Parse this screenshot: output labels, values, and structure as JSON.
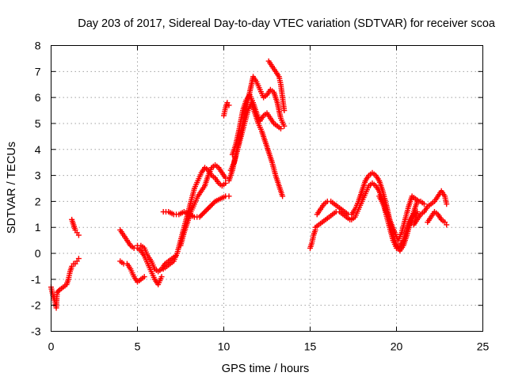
{
  "chart_data": {
    "type": "scatter",
    "title": "Day 203 of 2017, Sidereal Day-to-day VTEC variation (SDTVAR) for receiver scoa",
    "xlabel": "GPS time / hours",
    "ylabel": "SDTVAR / TECUs",
    "xlim": [
      0,
      25
    ],
    "ylim": [
      -3,
      8
    ],
    "xticks": [
      "0",
      "5",
      "10",
      "15",
      "20",
      "25"
    ],
    "yticks": [
      "-3",
      "-2",
      "-1",
      "0",
      "1",
      "2",
      "3",
      "4",
      "5",
      "6",
      "7",
      "8"
    ],
    "grid": true,
    "marker": "+",
    "color": "#ff0000",
    "series": [
      {
        "points": [
          [
            0.0,
            -1.3
          ],
          [
            0.1,
            -1.6
          ],
          [
            0.2,
            -1.8
          ],
          [
            0.3,
            -2.1
          ],
          [
            0.35,
            -1.5
          ],
          [
            0.5,
            -1.4
          ],
          [
            0.7,
            -1.3
          ],
          [
            0.9,
            -1.2
          ],
          [
            1.0,
            -1.0
          ],
          [
            1.1,
            -0.7
          ],
          [
            1.2,
            -0.5
          ],
          [
            1.3,
            -0.4
          ],
          [
            1.4,
            -0.4
          ],
          [
            1.5,
            -0.3
          ],
          [
            1.6,
            -0.2
          ],
          [
            1.2,
            1.3
          ],
          [
            1.3,
            1.1
          ],
          [
            1.4,
            0.9
          ],
          [
            1.5,
            0.8
          ],
          [
            1.6,
            0.7
          ],
          [
            4.0,
            -0.3
          ],
          [
            4.2,
            -0.4
          ],
          [
            4.4,
            -0.4
          ],
          [
            4.6,
            -0.6
          ],
          [
            4.8,
            -0.9
          ],
          [
            5.0,
            -1.1
          ],
          [
            5.2,
            -1.0
          ],
          [
            5.4,
            -0.9
          ],
          [
            4.0,
            0.9
          ],
          [
            4.2,
            0.7
          ],
          [
            4.4,
            0.5
          ],
          [
            4.6,
            0.3
          ],
          [
            4.8,
            0.2
          ],
          [
            5.0,
            0.2
          ],
          [
            5.2,
            0.1
          ],
          [
            5.4,
            -0.1
          ],
          [
            5.6,
            -0.4
          ],
          [
            5.8,
            -0.7
          ],
          [
            6.0,
            -1.0
          ],
          [
            6.2,
            -1.2
          ],
          [
            6.4,
            -0.9
          ],
          [
            5.0,
            0.3
          ],
          [
            5.2,
            0.3
          ],
          [
            5.4,
            0.2
          ],
          [
            5.6,
            -0.1
          ],
          [
            5.8,
            -0.3
          ],
          [
            6.0,
            -0.6
          ],
          [
            6.2,
            -0.7
          ],
          [
            6.4,
            -0.6
          ],
          [
            6.6,
            -0.4
          ],
          [
            6.8,
            -0.3
          ],
          [
            7.0,
            -0.2
          ],
          [
            7.2,
            -0.1
          ],
          [
            6.5,
            -0.6
          ],
          [
            6.7,
            -0.5
          ],
          [
            6.9,
            -0.4
          ],
          [
            7.1,
            -0.3
          ],
          [
            7.3,
            0.0
          ],
          [
            7.5,
            0.5
          ],
          [
            7.7,
            1.0
          ],
          [
            7.9,
            1.5
          ],
          [
            8.1,
            2.0
          ],
          [
            8.3,
            2.5
          ],
          [
            8.5,
            2.8
          ],
          [
            8.7,
            3.1
          ],
          [
            8.9,
            3.3
          ],
          [
            9.1,
            3.2
          ],
          [
            9.3,
            3.0
          ],
          [
            9.5,
            2.9
          ],
          [
            9.7,
            2.7
          ],
          [
            9.9,
            2.6
          ],
          [
            10.1,
            2.7
          ],
          [
            7.5,
            0.3
          ],
          [
            7.7,
            0.8
          ],
          [
            7.9,
            1.2
          ],
          [
            8.1,
            1.6
          ],
          [
            8.3,
            1.9
          ],
          [
            8.5,
            2.2
          ],
          [
            8.7,
            2.4
          ],
          [
            8.9,
            2.6
          ],
          [
            9.1,
            3.0
          ],
          [
            9.3,
            3.3
          ],
          [
            9.5,
            3.4
          ],
          [
            9.7,
            3.3
          ],
          [
            9.9,
            3.1
          ],
          [
            10.1,
            2.9
          ],
          [
            6.5,
            1.6
          ],
          [
            6.8,
            1.6
          ],
          [
            7.1,
            1.5
          ],
          [
            7.4,
            1.5
          ],
          [
            7.7,
            1.6
          ],
          [
            8.0,
            1.5
          ],
          [
            8.3,
            1.4
          ],
          [
            8.6,
            1.4
          ],
          [
            8.9,
            1.6
          ],
          [
            9.2,
            1.8
          ],
          [
            9.5,
            2.0
          ],
          [
            9.8,
            2.1
          ],
          [
            10.1,
            2.2
          ],
          [
            10.3,
            2.2
          ],
          [
            10.0,
            5.3
          ],
          [
            10.1,
            5.6
          ],
          [
            10.2,
            5.8
          ],
          [
            10.3,
            5.7
          ],
          [
            10.3,
            2.8
          ],
          [
            10.5,
            3.2
          ],
          [
            10.7,
            3.8
          ],
          [
            10.9,
            4.4
          ],
          [
            11.1,
            5.0
          ],
          [
            11.3,
            5.6
          ],
          [
            11.5,
            6.2
          ],
          [
            11.7,
            6.8
          ],
          [
            11.9,
            6.6
          ],
          [
            12.1,
            6.3
          ],
          [
            12.3,
            6.0
          ],
          [
            12.5,
            6.1
          ],
          [
            12.7,
            6.3
          ],
          [
            12.9,
            6.2
          ],
          [
            13.1,
            5.8
          ],
          [
            13.3,
            5.2
          ],
          [
            13.5,
            4.9
          ],
          [
            10.5,
            3.8
          ],
          [
            10.7,
            4.2
          ],
          [
            10.9,
            4.8
          ],
          [
            11.1,
            5.5
          ],
          [
            11.3,
            5.9
          ],
          [
            11.5,
            6.1
          ],
          [
            11.7,
            5.8
          ],
          [
            11.9,
            5.4
          ],
          [
            12.1,
            5.1
          ],
          [
            12.3,
            5.3
          ],
          [
            12.5,
            5.4
          ],
          [
            12.7,
            5.2
          ],
          [
            12.9,
            5.0
          ],
          [
            13.1,
            4.9
          ],
          [
            13.3,
            4.8
          ],
          [
            10.4,
            3.2
          ],
          [
            10.6,
            3.5
          ],
          [
            10.8,
            4.0
          ],
          [
            11.0,
            4.5
          ],
          [
            11.2,
            5.0
          ],
          [
            11.4,
            5.5
          ],
          [
            11.6,
            5.8
          ],
          [
            11.8,
            5.4
          ],
          [
            12.0,
            5.0
          ],
          [
            12.2,
            4.7
          ],
          [
            12.4,
            4.3
          ],
          [
            12.6,
            3.9
          ],
          [
            12.8,
            3.5
          ],
          [
            13.0,
            3.0
          ],
          [
            13.2,
            2.6
          ],
          [
            13.4,
            2.2
          ],
          [
            12.6,
            7.4
          ],
          [
            12.8,
            7.2
          ],
          [
            13.0,
            7.0
          ],
          [
            13.2,
            6.8
          ],
          [
            13.3,
            6.5
          ],
          [
            13.4,
            6.0
          ],
          [
            13.5,
            5.5
          ],
          [
            15.0,
            0.2
          ],
          [
            15.1,
            0.4
          ],
          [
            15.2,
            0.7
          ],
          [
            15.3,
            0.9
          ],
          [
            15.3,
            1.0
          ],
          [
            15.5,
            1.1
          ],
          [
            15.7,
            1.2
          ],
          [
            15.9,
            1.3
          ],
          [
            16.1,
            1.4
          ],
          [
            16.3,
            1.5
          ],
          [
            16.5,
            1.6
          ],
          [
            16.7,
            1.6
          ],
          [
            16.9,
            1.5
          ],
          [
            17.1,
            1.4
          ],
          [
            17.3,
            1.3
          ],
          [
            15.4,
            1.5
          ],
          [
            15.6,
            1.7
          ],
          [
            15.8,
            1.9
          ],
          [
            16.0,
            2.0
          ],
          [
            16.2,
            2.0
          ],
          [
            16.4,
            1.9
          ],
          [
            16.6,
            1.8
          ],
          [
            16.8,
            1.7
          ],
          [
            17.0,
            1.6
          ],
          [
            17.2,
            1.5
          ],
          [
            17.4,
            1.5
          ],
          [
            17.6,
            1.7
          ],
          [
            17.8,
            2.0
          ],
          [
            18.0,
            2.4
          ],
          [
            18.2,
            2.8
          ],
          [
            18.4,
            3.0
          ],
          [
            18.6,
            3.1
          ],
          [
            18.8,
            3.0
          ],
          [
            19.0,
            2.8
          ],
          [
            19.2,
            2.4
          ],
          [
            19.4,
            1.9
          ],
          [
            19.6,
            1.3
          ],
          [
            19.8,
            0.7
          ],
          [
            20.0,
            0.3
          ],
          [
            20.2,
            0.1
          ],
          [
            20.4,
            0.3
          ],
          [
            20.6,
            0.7
          ],
          [
            20.8,
            1.2
          ],
          [
            21.0,
            1.6
          ],
          [
            21.2,
            2.0
          ],
          [
            21.4,
            2.0
          ],
          [
            21.6,
            1.9
          ],
          [
            17.4,
            1.3
          ],
          [
            17.6,
            1.4
          ],
          [
            17.8,
            1.7
          ],
          [
            18.0,
            2.0
          ],
          [
            18.2,
            2.3
          ],
          [
            18.4,
            2.6
          ],
          [
            18.6,
            2.7
          ],
          [
            18.8,
            2.6
          ],
          [
            19.0,
            2.4
          ],
          [
            19.2,
            2.0
          ],
          [
            19.4,
            1.5
          ],
          [
            19.6,
            1.0
          ],
          [
            19.8,
            0.5
          ],
          [
            20.0,
            0.2
          ],
          [
            20.2,
            0.3
          ],
          [
            20.4,
            0.5
          ],
          [
            20.6,
            0.9
          ],
          [
            20.8,
            1.3
          ],
          [
            21.0,
            1.5
          ],
          [
            21.2,
            1.6
          ],
          [
            21.0,
            1.1
          ],
          [
            21.2,
            1.3
          ],
          [
            21.4,
            1.5
          ],
          [
            21.6,
            1.6
          ],
          [
            21.8,
            1.8
          ],
          [
            22.0,
            1.9
          ],
          [
            22.2,
            2.0
          ],
          [
            22.4,
            2.2
          ],
          [
            22.6,
            2.4
          ],
          [
            22.8,
            2.2
          ],
          [
            22.9,
            1.9
          ],
          [
            21.8,
            1.2
          ],
          [
            22.0,
            1.4
          ],
          [
            22.2,
            1.6
          ],
          [
            22.4,
            1.5
          ],
          [
            22.6,
            1.3
          ],
          [
            22.8,
            1.2
          ],
          [
            22.9,
            1.1
          ],
          [
            19.0,
            2.2
          ],
          [
            19.3,
            1.8
          ],
          [
            19.6,
            1.3
          ],
          [
            19.9,
            0.8
          ],
          [
            20.1,
            0.5
          ],
          [
            20.3,
            0.8
          ],
          [
            20.5,
            1.3
          ],
          [
            20.7,
            1.8
          ],
          [
            20.9,
            2.2
          ],
          [
            21.1,
            2.1
          ],
          [
            21.3,
            2.0
          ]
        ]
      }
    ]
  }
}
